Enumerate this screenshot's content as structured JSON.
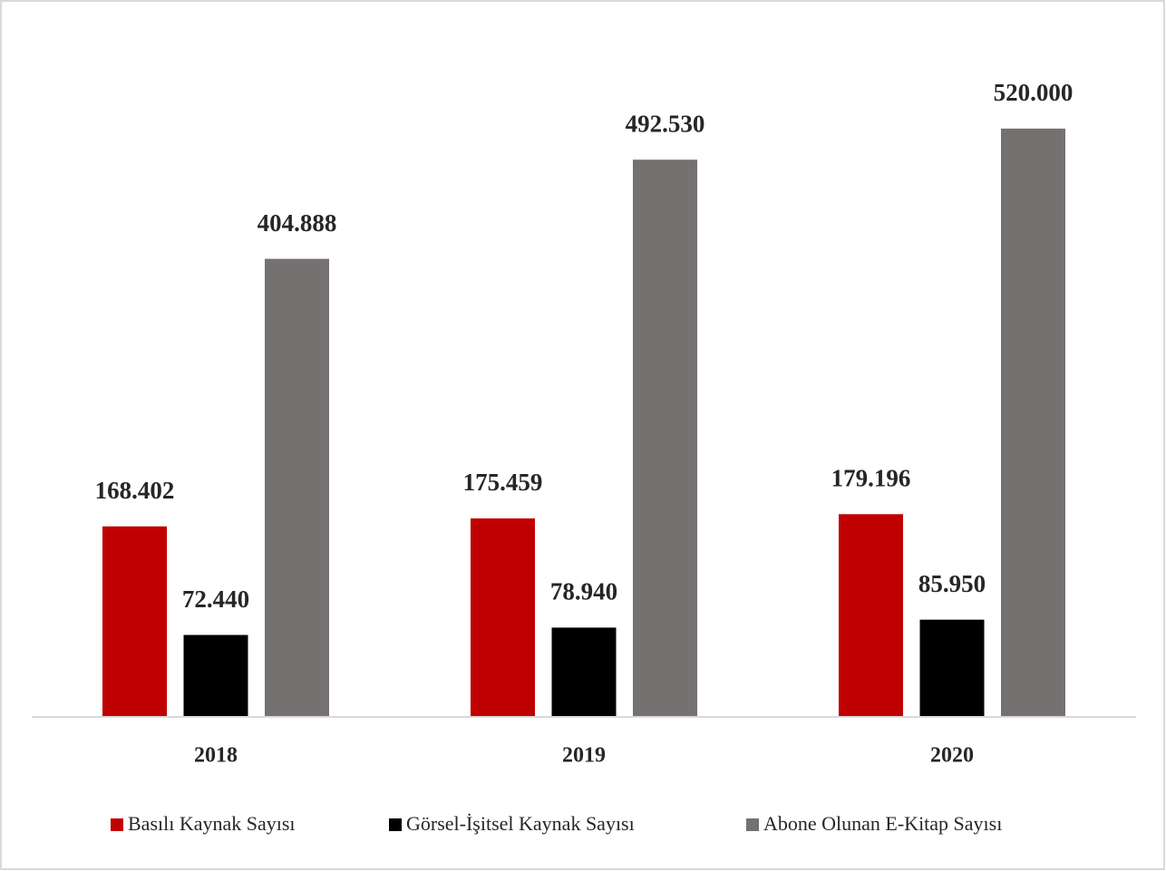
{
  "chart_data": {
    "type": "bar",
    "categories": [
      "2018",
      "2019",
      "2020"
    ],
    "series": [
      {
        "name": "Basılı Kaynak Sayısı",
        "color": "#c00000",
        "values": [
          168402,
          175459,
          179196
        ],
        "value_labels": [
          "168.402",
          "175.459",
          "179.196"
        ]
      },
      {
        "name": "Görsel-İşitsel Kaynak Sayısı",
        "color": "#000000",
        "values": [
          72440,
          78940,
          85950
        ],
        "value_labels": [
          "72.440",
          "78.940",
          "85.950"
        ]
      },
      {
        "name": "Abone Olunan E-Kitap Sayısı",
        "color": "#767171",
        "values": [
          404888,
          492530,
          520000
        ],
        "value_labels": [
          "404.888",
          "492.530",
          "520.000"
        ]
      }
    ],
    "ylim": [
      0,
      600000
    ],
    "legend": "bottom"
  }
}
